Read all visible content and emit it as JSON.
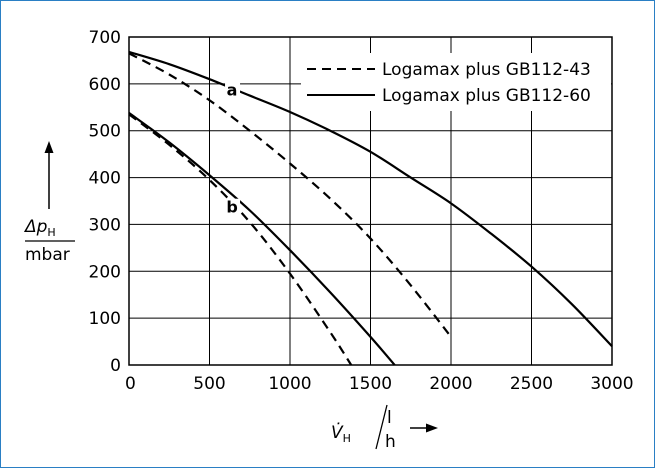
{
  "chart_data": {
    "type": "line",
    "title": "",
    "xlabel": {
      "symbol": "V̇",
      "subscript": "H",
      "unit": "l/h"
    },
    "ylabel": {
      "symbol": "Δp",
      "subscript": "H",
      "unit": "mbar"
    },
    "xlim": [
      0,
      3000
    ],
    "ylim": [
      0,
      700
    ],
    "x_ticks": [
      "0",
      "500",
      "1000",
      "1500",
      "2000",
      "2500",
      "3000"
    ],
    "y_ticks": [
      "0",
      "100",
      "200",
      "300",
      "400",
      "500",
      "600",
      "700"
    ],
    "grid": true,
    "legend_position": "top-right",
    "series": [
      {
        "name": "Logamax plus GB112-43",
        "curve": "a",
        "style": "dashed",
        "x": [
          0,
          250,
          500,
          750,
          1000,
          1250,
          1500,
          1750,
          2000
        ],
        "y": [
          665,
          620,
          565,
          500,
          430,
          355,
          270,
          170,
          60
        ]
      },
      {
        "name": "Logamax plus GB112-60",
        "curve": "a",
        "style": "solid",
        "x": [
          0,
          250,
          500,
          750,
          1000,
          1250,
          1500,
          1750,
          2000,
          2250,
          2500,
          2750,
          3000
        ],
        "y": [
          668,
          642,
          610,
          575,
          540,
          500,
          455,
          400,
          345,
          280,
          210,
          130,
          40
        ]
      },
      {
        "name": "Logamax plus GB112-43",
        "curve": "b",
        "style": "dashed",
        "x": [
          0,
          250,
          500,
          750,
          1000,
          1250,
          1380
        ],
        "y": [
          535,
          470,
          395,
          305,
          195,
          70,
          0
        ]
      },
      {
        "name": "Logamax plus GB112-60",
        "curve": "b",
        "style": "solid",
        "x": [
          0,
          250,
          500,
          750,
          1000,
          1250,
          1500,
          1650
        ],
        "y": [
          538,
          475,
          405,
          330,
          245,
          155,
          60,
          0
        ]
      }
    ],
    "annotations": [
      {
        "text": "a",
        "x": 640,
        "y": 575
      },
      {
        "text": "b",
        "x": 640,
        "y": 325
      }
    ]
  },
  "legend": {
    "items": [
      {
        "label": "Logamax plus GB112-43",
        "style": "dashed"
      },
      {
        "label": "Logamax plus GB112-60",
        "style": "solid"
      }
    ]
  },
  "colors": {
    "frame": "#2a7fc4",
    "grid": "#000000",
    "curve": "#000000"
  }
}
